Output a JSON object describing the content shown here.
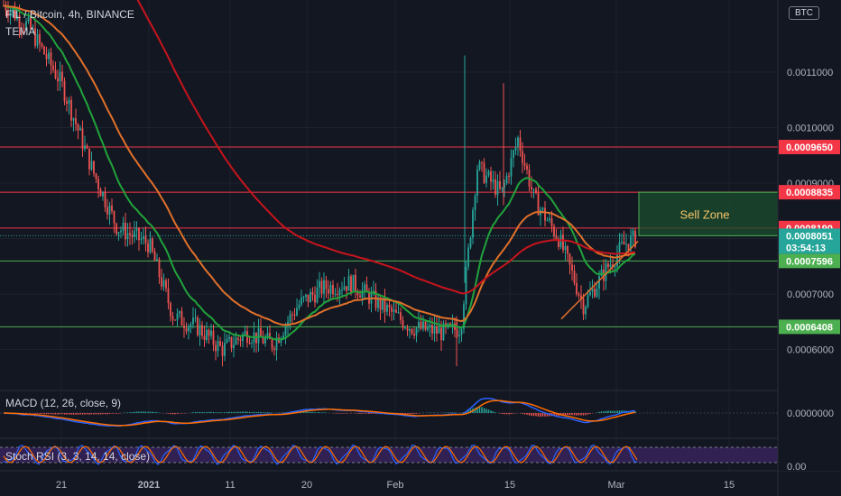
{
  "header": {
    "symbol_line": "FIL / Bitcoin, 4h, BINANCE",
    "indicator": "TEMA",
    "currency_button": "BTC"
  },
  "colors": {
    "background": "#131722",
    "grid": "#1e222d",
    "up": "#26a69a",
    "down": "#ef5350",
    "ema_fast": "#21a33b",
    "ema_mid": "#e0702a",
    "ema_slow": "#c8141c",
    "resistance": "#f23645",
    "support": "#4caf50",
    "sell_zone": "#1b4d2e",
    "stoch_band": "#3a2460"
  },
  "sell_zone_label": "Sell Zone",
  "price_tags": {
    "last": "0.0008051",
    "countdown": "03:54:13"
  },
  "macd_label": "MACD (12, 26, close, 9)",
  "macd_value": "0.0000000",
  "stoch_label": "Stoch RSI (3, 3, 14, 14, close)",
  "stoch_value": "0.00",
  "chart_data": {
    "type": "candlestick",
    "title": "FIL / Bitcoin, 4h, BINANCE",
    "y_axis_ticks": [
      "0.0006000",
      "0.0007000",
      "0.0008000",
      "0.0009000",
      "0.0010000",
      "0.0011000"
    ],
    "x_axis_ticks": [
      "21",
      "2021",
      "11",
      "20",
      "Feb",
      "15",
      "Mar",
      "15"
    ],
    "ylim": [
      0.00055,
      0.00124
    ],
    "horizontal_levels": [
      {
        "label": "0.0009650",
        "value": 0.000965,
        "kind": "resistance"
      },
      {
        "label": "0.0008835",
        "value": 0.0008835,
        "kind": "resistance"
      },
      {
        "label": "0.0008190",
        "value": 0.000819,
        "kind": "resistance"
      },
      {
        "label": "0.0007596",
        "value": 0.0007596,
        "kind": "support"
      },
      {
        "label": "0.0006408",
        "value": 0.0006408,
        "kind": "support"
      }
    ],
    "sell_zone": {
      "top": 0.0008835,
      "bottom": 0.0008051
    },
    "series": [
      {
        "name": "close",
        "approx_points": [
          [
            "Dec 14",
            0.00122
          ],
          [
            "Dec 17",
            0.00118
          ],
          [
            "Dec 21",
            0.00108
          ],
          [
            "Dec 25",
            0.00092
          ],
          [
            "Dec 28",
            0.00082
          ],
          [
            "Jan 1",
            0.00079
          ],
          [
            "Jan 4",
            0.00066
          ],
          [
            "Jan 7",
            0.00064
          ],
          [
            "Jan 10",
            0.0006
          ],
          [
            "Jan 13",
            0.00063
          ],
          [
            "Jan 16",
            0.00061
          ],
          [
            "Jan 19",
            0.00068
          ],
          [
            "Jan 22",
            0.00071
          ],
          [
            "Jan 26",
            0.00072
          ],
          [
            "Jan 30",
            0.00068
          ],
          [
            "Feb 3",
            0.00064
          ],
          [
            "Feb 7",
            0.00063
          ],
          [
            "Feb 9",
            0.00064
          ],
          [
            "Feb 11",
            0.00093
          ],
          [
            "Feb 14",
            0.00088
          ],
          [
            "Feb 16",
            0.00098
          ],
          [
            "Feb 18",
            0.00087
          ],
          [
            "Feb 21",
            0.0008
          ],
          [
            "Feb 24",
            0.00068
          ],
          [
            "Feb 27",
            0.00075
          ],
          [
            "Mar 1",
            0.00079
          ],
          [
            "Mar 3",
            0.000805
          ]
        ]
      }
    ]
  }
}
